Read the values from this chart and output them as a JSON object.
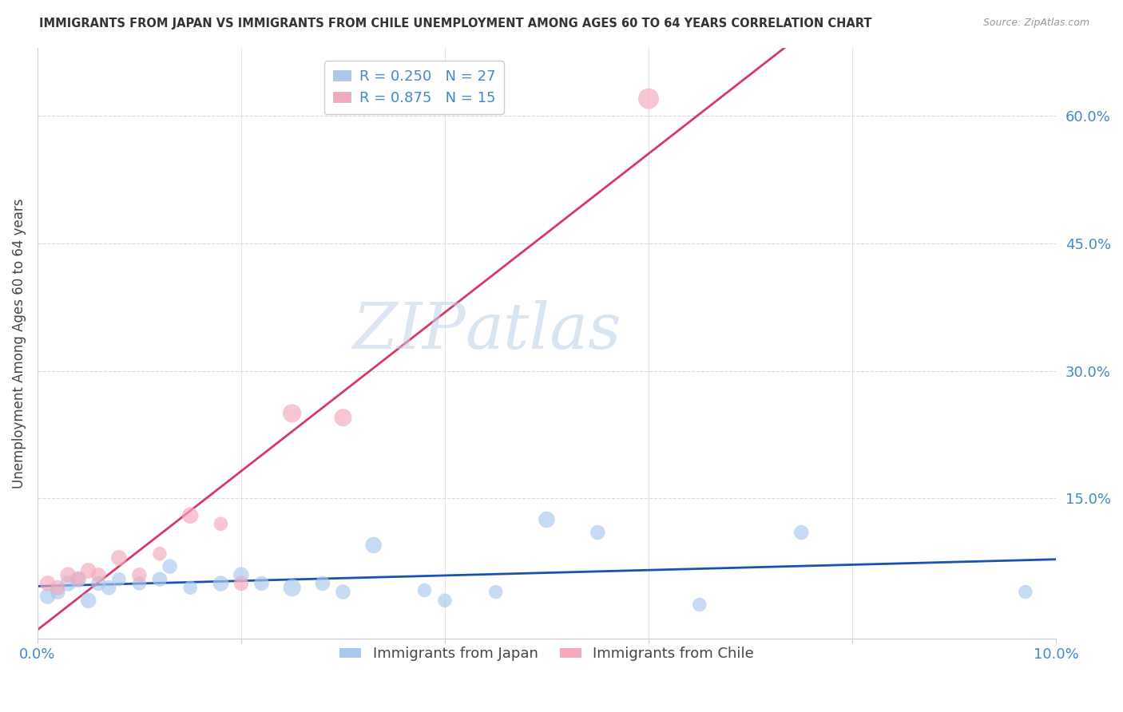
{
  "title": "IMMIGRANTS FROM JAPAN VS IMMIGRANTS FROM CHILE UNEMPLOYMENT AMONG AGES 60 TO 64 YEARS CORRELATION CHART",
  "source": "Source: ZipAtlas.com",
  "ylabel": "Unemployment Among Ages 60 to 64 years",
  "xlim": [
    0.0,
    0.1
  ],
  "ylim": [
    -0.015,
    0.68
  ],
  "xticks": [
    0.0,
    0.02,
    0.04,
    0.06,
    0.08,
    0.1
  ],
  "xticklabels": [
    "0.0%",
    "",
    "",
    "",
    "",
    "10.0%"
  ],
  "yticks_right": [
    0.15,
    0.3,
    0.45,
    0.6
  ],
  "ytick_right_labels": [
    "15.0%",
    "30.0%",
    "45.0%",
    "60.0%"
  ],
  "japan_color": "#A8C8EE",
  "chile_color": "#F4A8BB",
  "japan_line_color": "#1A52B0",
  "chile_line_color": "#D83868",
  "japan_R": 0.25,
  "japan_N": 27,
  "chile_R": 0.875,
  "chile_N": 15,
  "legend_label_japan": "Immigrants from Japan",
  "legend_label_chile": "Immigrants from Chile",
  "watermark_zip": "ZIP",
  "watermark_atlas": "atlas",
  "background_color": "#ffffff",
  "grid_color": "#d8d8d8",
  "japan_x": [
    0.001,
    0.002,
    0.003,
    0.004,
    0.005,
    0.006,
    0.007,
    0.008,
    0.01,
    0.012,
    0.013,
    0.015,
    0.018,
    0.02,
    0.022,
    0.025,
    0.028,
    0.03,
    0.033,
    0.038,
    0.04,
    0.045,
    0.05,
    0.055,
    0.065,
    0.075,
    0.097
  ],
  "japan_y": [
    0.035,
    0.04,
    0.05,
    0.055,
    0.03,
    0.05,
    0.045,
    0.055,
    0.05,
    0.055,
    0.07,
    0.045,
    0.05,
    0.06,
    0.05,
    0.045,
    0.05,
    0.04,
    0.095,
    0.042,
    0.03,
    0.04,
    0.125,
    0.11,
    0.025,
    0.11,
    0.04
  ],
  "japan_size": [
    200,
    180,
    200,
    220,
    200,
    180,
    180,
    160,
    160,
    180,
    180,
    160,
    200,
    200,
    180,
    250,
    180,
    180,
    220,
    160,
    160,
    160,
    220,
    180,
    160,
    180,
    160
  ],
  "chile_x": [
    0.001,
    0.002,
    0.003,
    0.004,
    0.005,
    0.006,
    0.008,
    0.01,
    0.012,
    0.015,
    0.018,
    0.02,
    0.025,
    0.03,
    0.06
  ],
  "chile_y": [
    0.05,
    0.045,
    0.06,
    0.055,
    0.065,
    0.06,
    0.08,
    0.06,
    0.085,
    0.13,
    0.12,
    0.05,
    0.25,
    0.245,
    0.62
  ],
  "chile_size": [
    200,
    180,
    200,
    160,
    200,
    180,
    200,
    180,
    160,
    220,
    160,
    180,
    280,
    250,
    350
  ]
}
